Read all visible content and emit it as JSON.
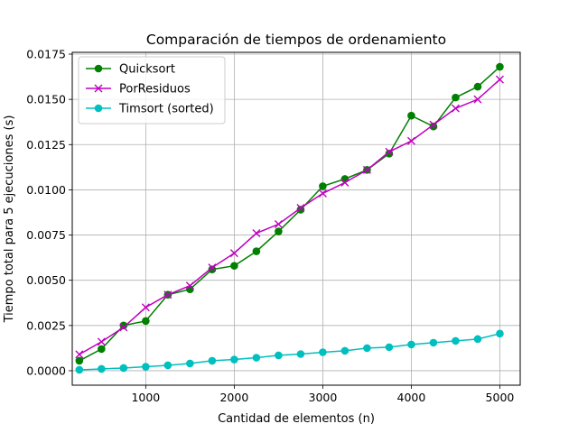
{
  "chart_data": {
    "type": "line",
    "title": "Comparación de tiempos de ordenamiento",
    "xlabel": "Cantidad de elementos (n)",
    "ylabel": "Tiempo total para 5 ejecuciones (s)",
    "xlim": [
      170,
      5230
    ],
    "ylim": [
      -0.0008,
      0.0176
    ],
    "xticks": [
      1000,
      2000,
      3000,
      4000,
      5000
    ],
    "xtick_labels": [
      "1000",
      "2000",
      "3000",
      "4000",
      "5000"
    ],
    "yticks": [
      0.0,
      0.0025,
      0.005,
      0.0075,
      0.01,
      0.0125,
      0.015,
      0.0175
    ],
    "ytick_labels": [
      "0.0000",
      "0.0025",
      "0.0050",
      "0.0075",
      "0.0100",
      "0.0125",
      "0.0150",
      "0.0175"
    ],
    "grid": true,
    "legend_position": "top-left",
    "x": [
      250,
      500,
      750,
      1000,
      1250,
      1500,
      1750,
      2000,
      2250,
      2500,
      2750,
      3000,
      3250,
      3500,
      3750,
      4000,
      4250,
      4500,
      4750,
      5000
    ],
    "series": [
      {
        "name": "Quicksort",
        "color": "#008000",
        "marker": "circle",
        "values": [
          0.00055,
          0.0012,
          0.0025,
          0.00275,
          0.0042,
          0.0045,
          0.0056,
          0.0058,
          0.0066,
          0.0077,
          0.0089,
          0.0102,
          0.0106,
          0.0111,
          0.012,
          0.0141,
          0.0135,
          0.0151,
          0.0157,
          0.0168
        ]
      },
      {
        "name": "PorResiduos",
        "color": "#bf00bf",
        "marker": "x",
        "values": [
          0.0009,
          0.0016,
          0.0024,
          0.0035,
          0.0042,
          0.0047,
          0.0057,
          0.0065,
          0.0076,
          0.0081,
          0.009,
          0.0098,
          0.0104,
          0.0111,
          0.0121,
          0.0127,
          0.0136,
          0.0145,
          0.015,
          0.0161
        ]
      },
      {
        "name": "Timsort (sorted)",
        "color": "#00bfbf",
        "marker": "circle",
        "values": [
          5e-05,
          0.0001,
          0.00015,
          0.00022,
          0.0003,
          0.0004,
          0.00055,
          0.00062,
          0.00072,
          0.00085,
          0.00092,
          0.00102,
          0.0011,
          0.00125,
          0.0013,
          0.00145,
          0.00155,
          0.00165,
          0.00175,
          0.00205
        ]
      }
    ]
  }
}
